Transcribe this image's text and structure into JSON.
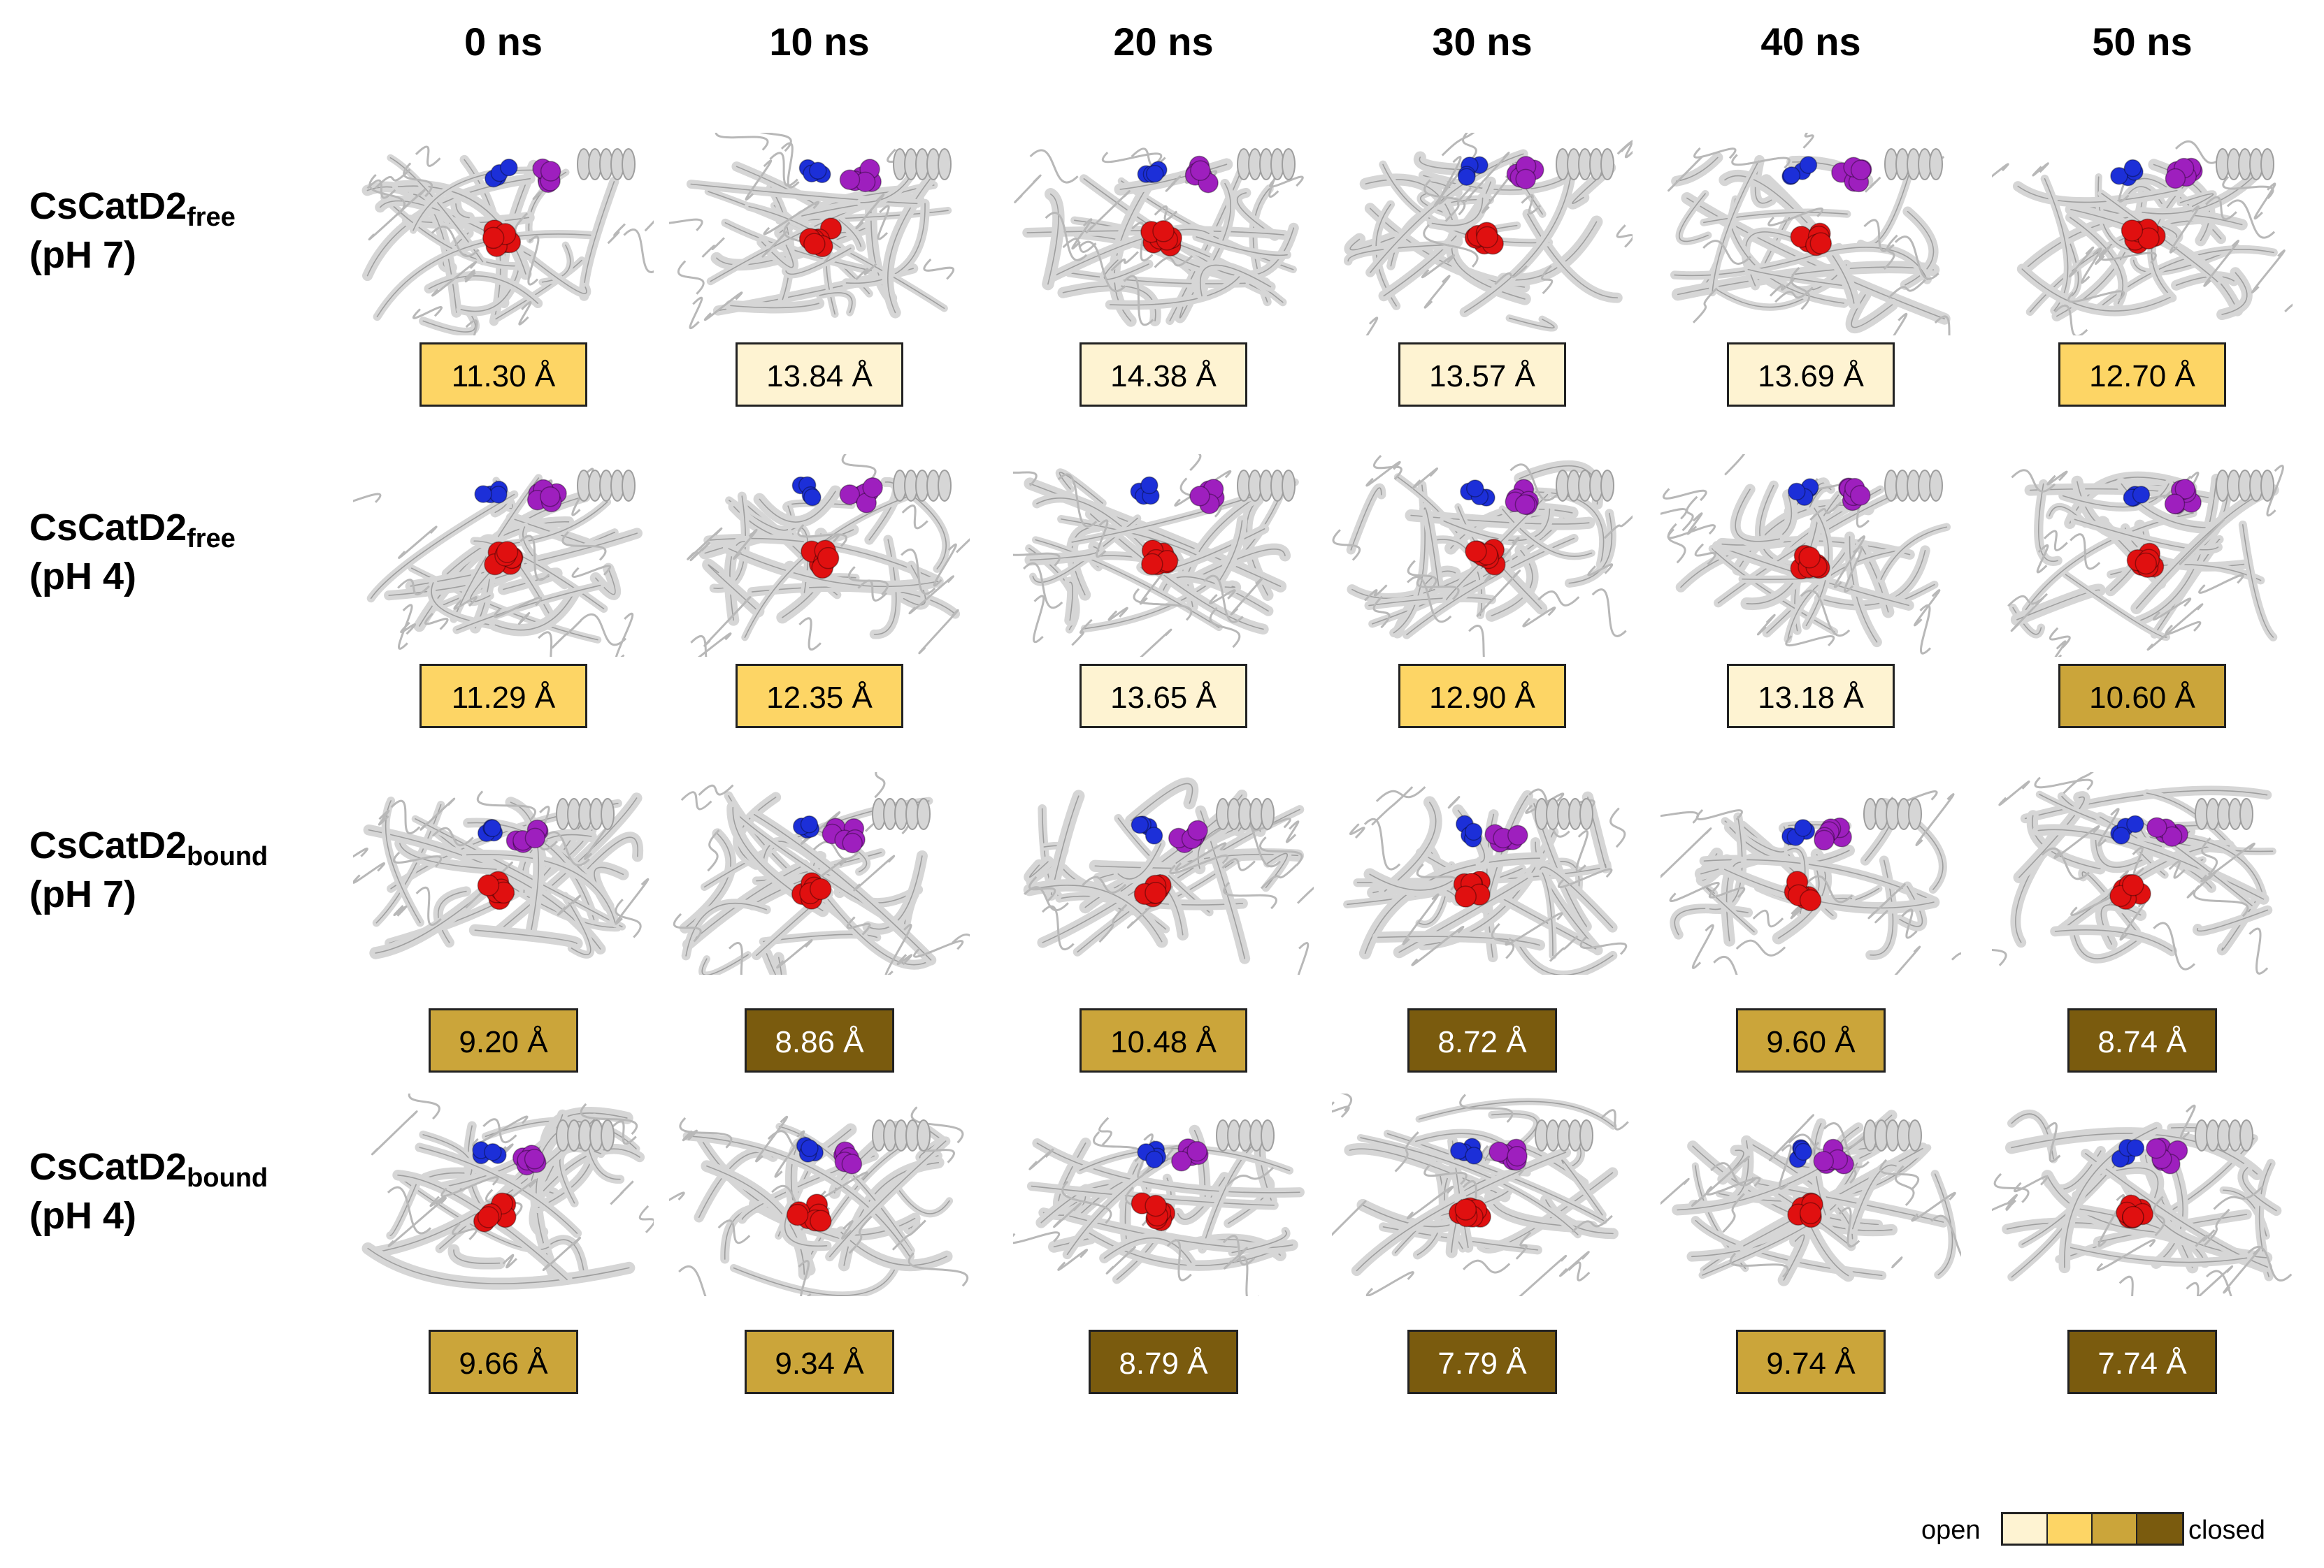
{
  "columns": [
    "0 ns",
    "10 ns",
    "20 ns",
    "30 ns",
    "40 ns",
    "50 ns"
  ],
  "rows": [
    {
      "label_main": "CsCatD2",
      "label_sub": "free",
      "label_ph": "(pH 7)",
      "values": [
        "11.30 Å",
        "13.84 Å",
        "14.38 Å",
        "13.57 Å",
        "13.69 Å",
        "12.70 Å"
      ],
      "levels": [
        1,
        0,
        0,
        0,
        0,
        1
      ]
    },
    {
      "label_main": "CsCatD2",
      "label_sub": "free",
      "label_ph": "(pH 4)",
      "values": [
        "11.29 Å",
        "12.35 Å",
        "13.65 Å",
        "12.90 Å",
        "13.18 Å",
        "10.60 Å"
      ],
      "levels": [
        1,
        1,
        0,
        1,
        0,
        2
      ]
    },
    {
      "label_main": "CsCatD2",
      "label_sub": "bound",
      "label_ph": "(pH 7)",
      "values": [
        "9.20 Å",
        "8.86 Å",
        "10.48 Å",
        "8.72 Å",
        "9.60 Å",
        "8.74 Å"
      ],
      "levels": [
        2,
        3,
        2,
        3,
        2,
        3
      ]
    },
    {
      "label_main": "CsCatD2",
      "label_sub": "bound",
      "label_ph": "(pH 4)",
      "values": [
        "9.66 Å",
        "9.34 Å",
        "8.79 Å",
        "7.79 Å",
        "9.74 Å",
        "7.74 Å"
      ],
      "levels": [
        2,
        2,
        3,
        3,
        2,
        3
      ]
    }
  ],
  "legend": {
    "open_label": "open",
    "closed_label": "closed",
    "scale_colors": [
      "#FEF3D2",
      "#FDD565",
      "#CBA53A",
      "#7A5B0E"
    ]
  },
  "text_colors": [
    "#000000",
    "#000000",
    "#000000",
    "#FFFFFF"
  ],
  "colors": {
    "protein": "#D6D6D6",
    "protein_edge": "#9E9E9E",
    "residue_blue": "#1C2FD8",
    "residue_purple": "#9E1FBE",
    "residue_red": "#E01010"
  }
}
